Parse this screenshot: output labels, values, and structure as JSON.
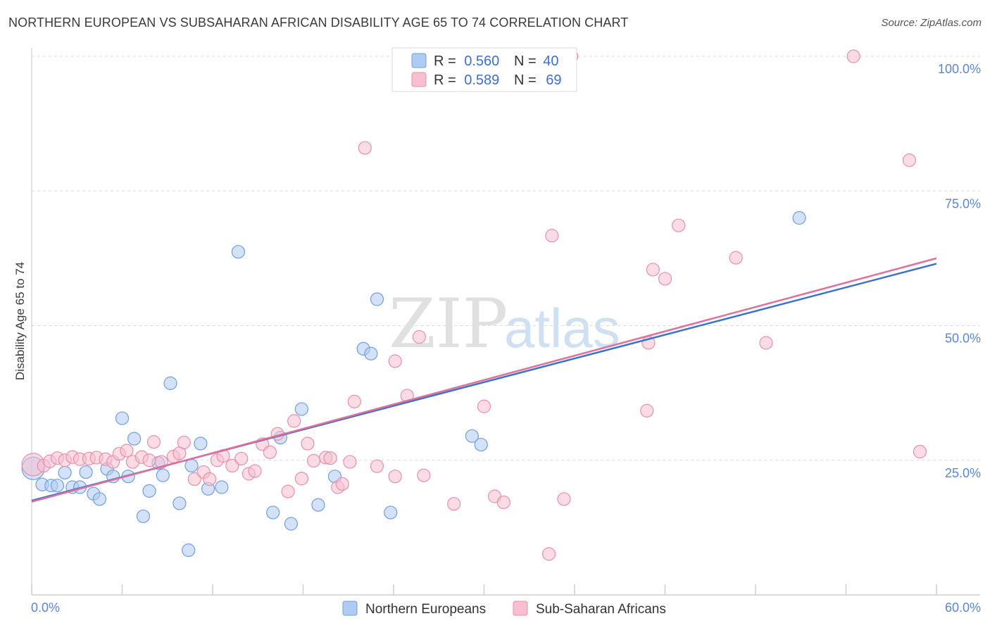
{
  "title": "NORTHERN EUROPEAN VS SUBSAHARAN AFRICAN DISABILITY AGE 65 TO 74 CORRELATION CHART",
  "source": "Source: ZipAtlas.com",
  "watermark": {
    "zip": "ZIP",
    "atlas": "atlas"
  },
  "colors": {
    "blue_fill": "#aecbf2",
    "blue_stroke": "#6f9fe0",
    "blue_line": "#3a72cc",
    "pink_fill": "#f7bfd0",
    "pink_stroke": "#e88fab",
    "pink_line": "#e0709a"
  },
  "legend": {
    "rows": [
      {
        "r_label": "R = ",
        "r_value": "0.560",
        "n_label": "N = ",
        "n_value": "40"
      },
      {
        "r_label": "R = ",
        "r_value": "0.589",
        "n_label": "N = ",
        "n_value": "69"
      }
    ]
  },
  "chart_data": {
    "type": "scatter",
    "title": "NORTHERN EUROPEAN VS SUBSAHARAN AFRICAN DISABILITY AGE 65 TO 74 CORRELATION CHART",
    "xlabel": "",
    "ylabel": "Disability Age 65 to 74",
    "xlim": [
      0,
      60
    ],
    "ylim": [
      0,
      103
    ],
    "x_tick_labels": [
      "0.0%",
      "60.0%"
    ],
    "y_ticks": [
      25,
      50,
      75,
      100
    ],
    "y_tick_labels": [
      "25.0%",
      "50.0%",
      "75.0%",
      "100.0%"
    ],
    "grid": true,
    "series": [
      {
        "name": "Northern Europeans",
        "color": "blue",
        "r": 0.56,
        "n": 40,
        "trend": {
          "x": [
            0,
            60
          ],
          "y": [
            17.5,
            61.5
          ]
        },
        "points": [
          [
            0.1,
            23.5,
            16
          ],
          [
            0.7,
            20.5,
            9
          ],
          [
            1.3,
            20.3,
            9
          ],
          [
            1.7,
            20.3,
            9
          ],
          [
            2.2,
            22.7,
            9
          ],
          [
            2.7,
            20.0,
            9
          ],
          [
            3.2,
            20.0,
            9
          ],
          [
            3.6,
            22.8,
            9
          ],
          [
            4.1,
            18.8,
            9
          ],
          [
            4.5,
            17.8,
            9
          ],
          [
            5.0,
            23.4,
            9
          ],
          [
            5.4,
            22.0,
            9
          ],
          [
            6.0,
            32.8,
            9
          ],
          [
            6.4,
            22.0,
            9
          ],
          [
            6.8,
            29.0,
            9
          ],
          [
            7.4,
            14.6,
            9
          ],
          [
            7.8,
            19.3,
            9
          ],
          [
            8.4,
            24.5,
            9
          ],
          [
            8.7,
            22.2,
            9
          ],
          [
            9.2,
            39.3,
            9
          ],
          [
            9.8,
            17.0,
            9
          ],
          [
            10.4,
            8.3,
            9
          ],
          [
            10.6,
            24.0,
            9
          ],
          [
            11.2,
            28.1,
            9
          ],
          [
            11.7,
            19.7,
            9
          ],
          [
            12.6,
            20.0,
            9
          ],
          [
            13.7,
            63.7,
            9
          ],
          [
            16.0,
            15.3,
            9
          ],
          [
            16.5,
            29.2,
            9
          ],
          [
            17.2,
            13.2,
            9
          ],
          [
            17.9,
            34.5,
            9
          ],
          [
            19.0,
            16.7,
            9
          ],
          [
            20.1,
            22.0,
            9
          ],
          [
            22.0,
            45.7,
            9
          ],
          [
            22.5,
            44.8,
            9
          ],
          [
            22.9,
            54.9,
            9
          ],
          [
            23.8,
            15.3,
            9
          ],
          [
            29.2,
            29.5,
            9
          ],
          [
            29.8,
            27.9,
            9
          ],
          [
            50.9,
            70.0,
            9
          ]
        ]
      },
      {
        "name": "Sub-Saharan Africans",
        "color": "pink",
        "r": 0.589,
        "n": 69,
        "trend": {
          "x": [
            0,
            60
          ],
          "y": [
            17.3,
            62.5
          ]
        },
        "points": [
          [
            0.1,
            24.2,
            16
          ],
          [
            0.8,
            24.0,
            9
          ],
          [
            1.2,
            24.8,
            9
          ],
          [
            1.7,
            25.4,
            9
          ],
          [
            2.2,
            25.0,
            9
          ],
          [
            2.7,
            25.6,
            9
          ],
          [
            3.2,
            25.2,
            9
          ],
          [
            3.8,
            25.3,
            9
          ],
          [
            4.3,
            25.5,
            9
          ],
          [
            4.9,
            25.2,
            9
          ],
          [
            5.4,
            24.7,
            9
          ],
          [
            5.8,
            26.2,
            9
          ],
          [
            6.3,
            26.8,
            9
          ],
          [
            6.7,
            24.7,
            9
          ],
          [
            7.3,
            25.6,
            9
          ],
          [
            7.8,
            25.0,
            9
          ],
          [
            8.1,
            28.4,
            9
          ],
          [
            8.6,
            24.7,
            9
          ],
          [
            9.4,
            25.7,
            9
          ],
          [
            9.8,
            26.3,
            9
          ],
          [
            10.1,
            28.3,
            9
          ],
          [
            10.8,
            21.5,
            9
          ],
          [
            11.4,
            22.8,
            9
          ],
          [
            11.8,
            21.5,
            9
          ],
          [
            12.3,
            25.0,
            9
          ],
          [
            12.7,
            25.8,
            9
          ],
          [
            13.3,
            24.0,
            9
          ],
          [
            13.9,
            25.3,
            9
          ],
          [
            14.4,
            22.5,
            9
          ],
          [
            14.8,
            23.0,
            9
          ],
          [
            15.3,
            28.0,
            9
          ],
          [
            15.8,
            26.5,
            9
          ],
          [
            16.3,
            29.9,
            9
          ],
          [
            17.0,
            19.2,
            9
          ],
          [
            17.4,
            32.3,
            9
          ],
          [
            17.9,
            21.6,
            9
          ],
          [
            18.3,
            28.1,
            9
          ],
          [
            18.7,
            24.9,
            9
          ],
          [
            19.5,
            25.5,
            9
          ],
          [
            19.8,
            25.4,
            9
          ],
          [
            20.3,
            20.0,
            9
          ],
          [
            20.6,
            20.6,
            9
          ],
          [
            21.1,
            24.7,
            9
          ],
          [
            21.4,
            35.9,
            9
          ],
          [
            22.1,
            83.0,
            9
          ],
          [
            22.9,
            23.9,
            9
          ],
          [
            24.1,
            43.4,
            9
          ],
          [
            24.1,
            22.0,
            9
          ],
          [
            24.9,
            37.0,
            9
          ],
          [
            25.7,
            47.9,
            9
          ],
          [
            26.0,
            22.2,
            9
          ],
          [
            28.0,
            16.9,
            9
          ],
          [
            30.0,
            35.0,
            9
          ],
          [
            30.7,
            18.3,
            9
          ],
          [
            31.3,
            17.2,
            9
          ],
          [
            34.3,
            7.6,
            9
          ],
          [
            34.5,
            66.7,
            9
          ],
          [
            35.3,
            17.8,
            9
          ],
          [
            35.8,
            100.0,
            9
          ],
          [
            40.8,
            34.2,
            9
          ],
          [
            40.9,
            46.8,
            9
          ],
          [
            41.2,
            60.4,
            9
          ],
          [
            42.0,
            58.7,
            9
          ],
          [
            42.9,
            68.6,
            9
          ],
          [
            46.7,
            62.6,
            9
          ],
          [
            48.7,
            46.8,
            9
          ],
          [
            54.5,
            100.0,
            9
          ],
          [
            58.2,
            80.7,
            9
          ],
          [
            58.9,
            26.6,
            9
          ]
        ]
      }
    ]
  }
}
